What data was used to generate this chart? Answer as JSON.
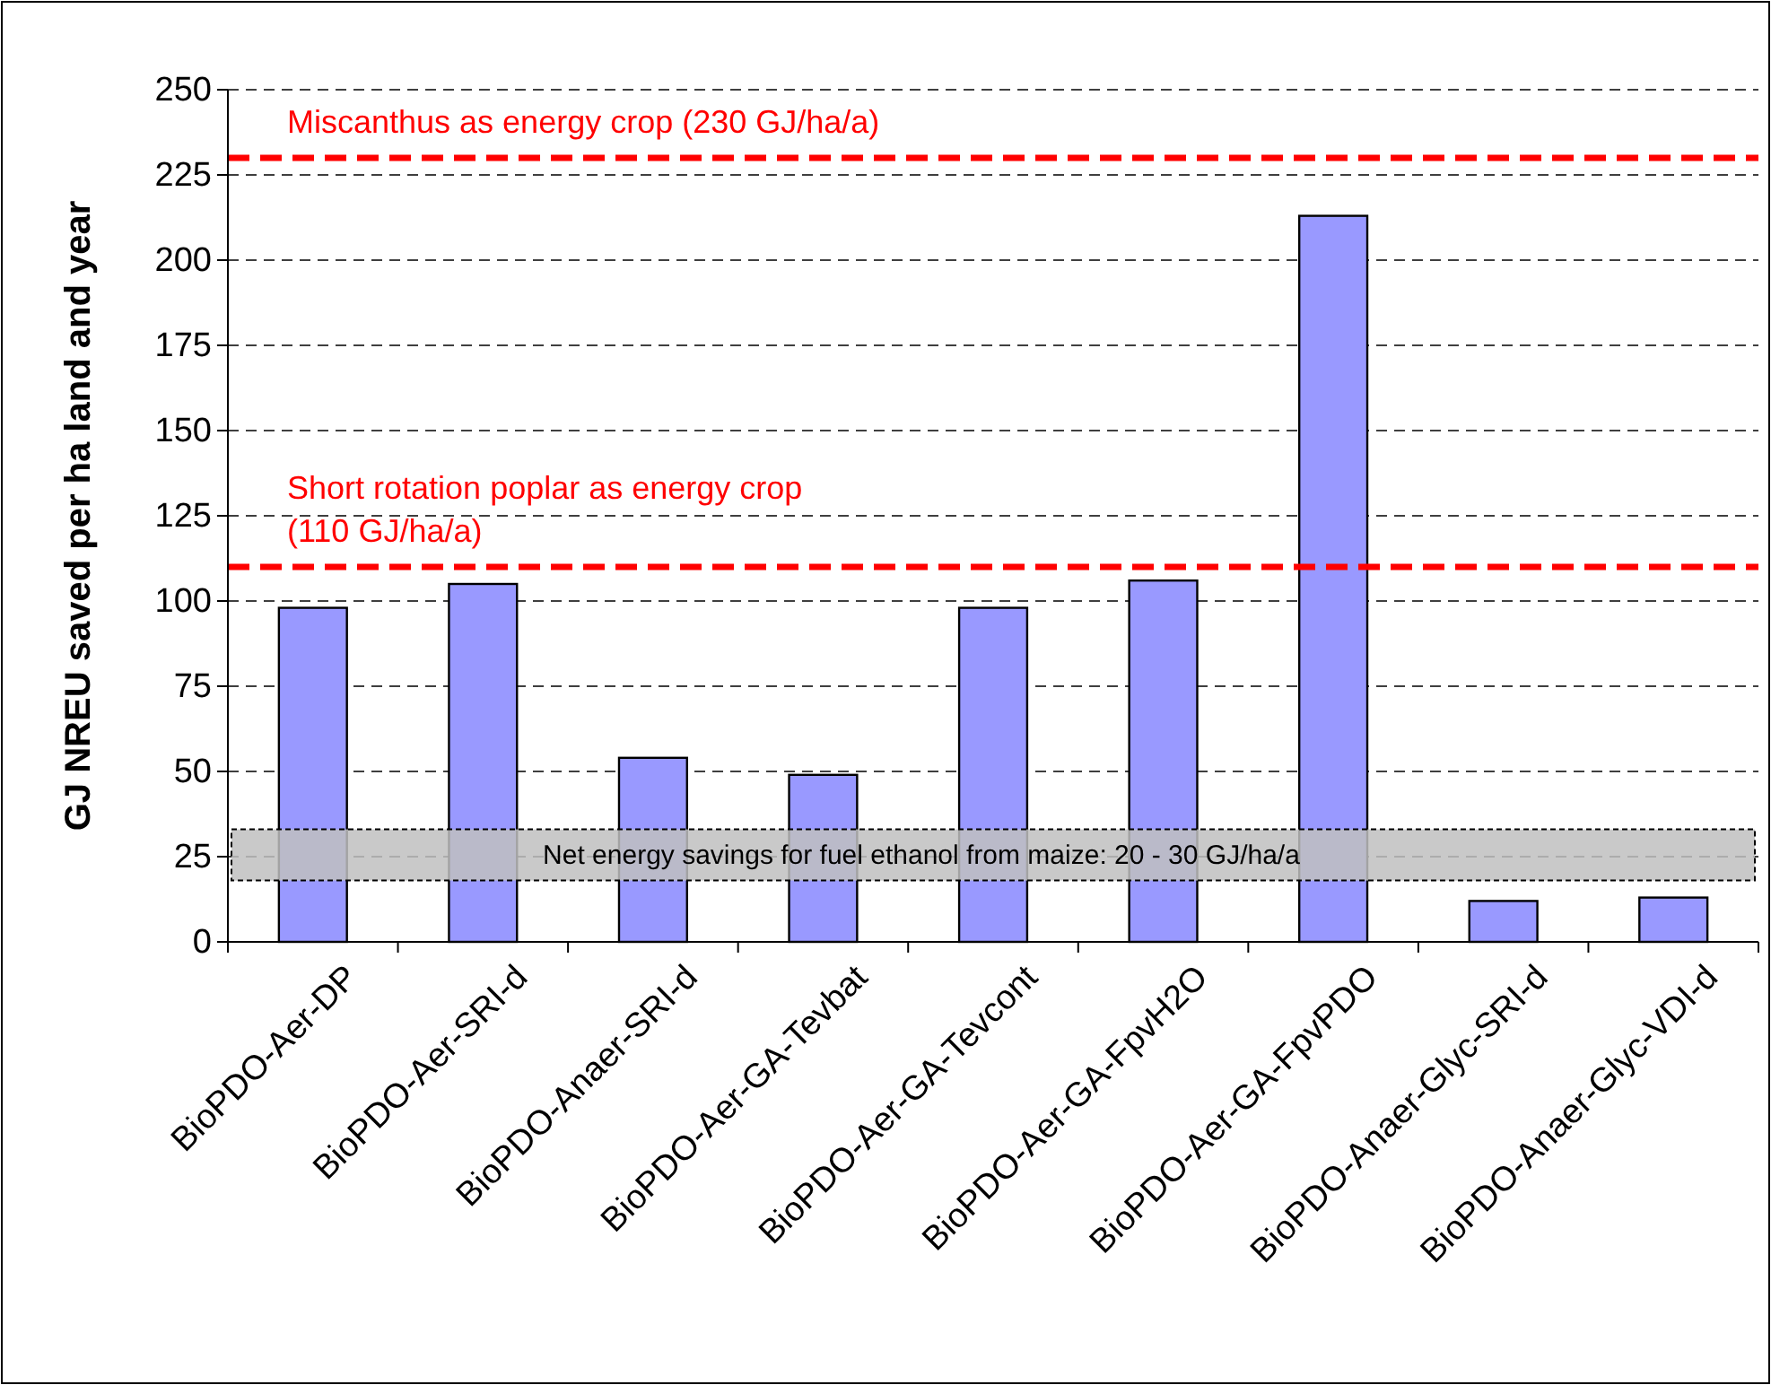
{
  "chart_data": {
    "type": "bar",
    "ylabel": "GJ NREU saved per ha land and year",
    "categories": [
      "BioPDO-Aer-DP",
      "BioPDO-Aer-SRI-d",
      "BioPDO-Anaer-SRI-d",
      "BioPDO-Aer-GA-Tevbat",
      "BioPDO-Aer-GA-Tevcont",
      "BioPDO-Aer-GA-FpvH2O",
      "BioPDO-Aer-GA-FpvPDO",
      "BioPDO-Anaer-Glyc-SRI-d",
      "BioPDO-Anaer-Glyc-VDI-d"
    ],
    "values": [
      98,
      105,
      54,
      49,
      98,
      106,
      213,
      12,
      13
    ],
    "color": "#9999ff",
    "ylim": [
      0,
      250
    ],
    "yticks": [
      0,
      25,
      50,
      75,
      100,
      125,
      150,
      175,
      200,
      225,
      250
    ],
    "grid": "y",
    "ref_lines": [
      {
        "axis": "y",
        "value": 230,
        "label": "Miscanthus as energy crop (230 GJ/ha/a)",
        "color": "#ff0000",
        "line_style": "dashed"
      },
      {
        "axis": "y",
        "value": 110,
        "label": "Short rotation poplar as energy crop\n(110 GJ/ha/a)",
        "color": "#ff0000",
        "line_style": "dashed"
      }
    ],
    "bands": [
      {
        "axis": "y",
        "from": 18,
        "to": 33,
        "label": "Net energy savings for fuel ethanol from maize:  20 - 30 GJ/ha/a",
        "color": "#c0c0c0"
      }
    ]
  }
}
